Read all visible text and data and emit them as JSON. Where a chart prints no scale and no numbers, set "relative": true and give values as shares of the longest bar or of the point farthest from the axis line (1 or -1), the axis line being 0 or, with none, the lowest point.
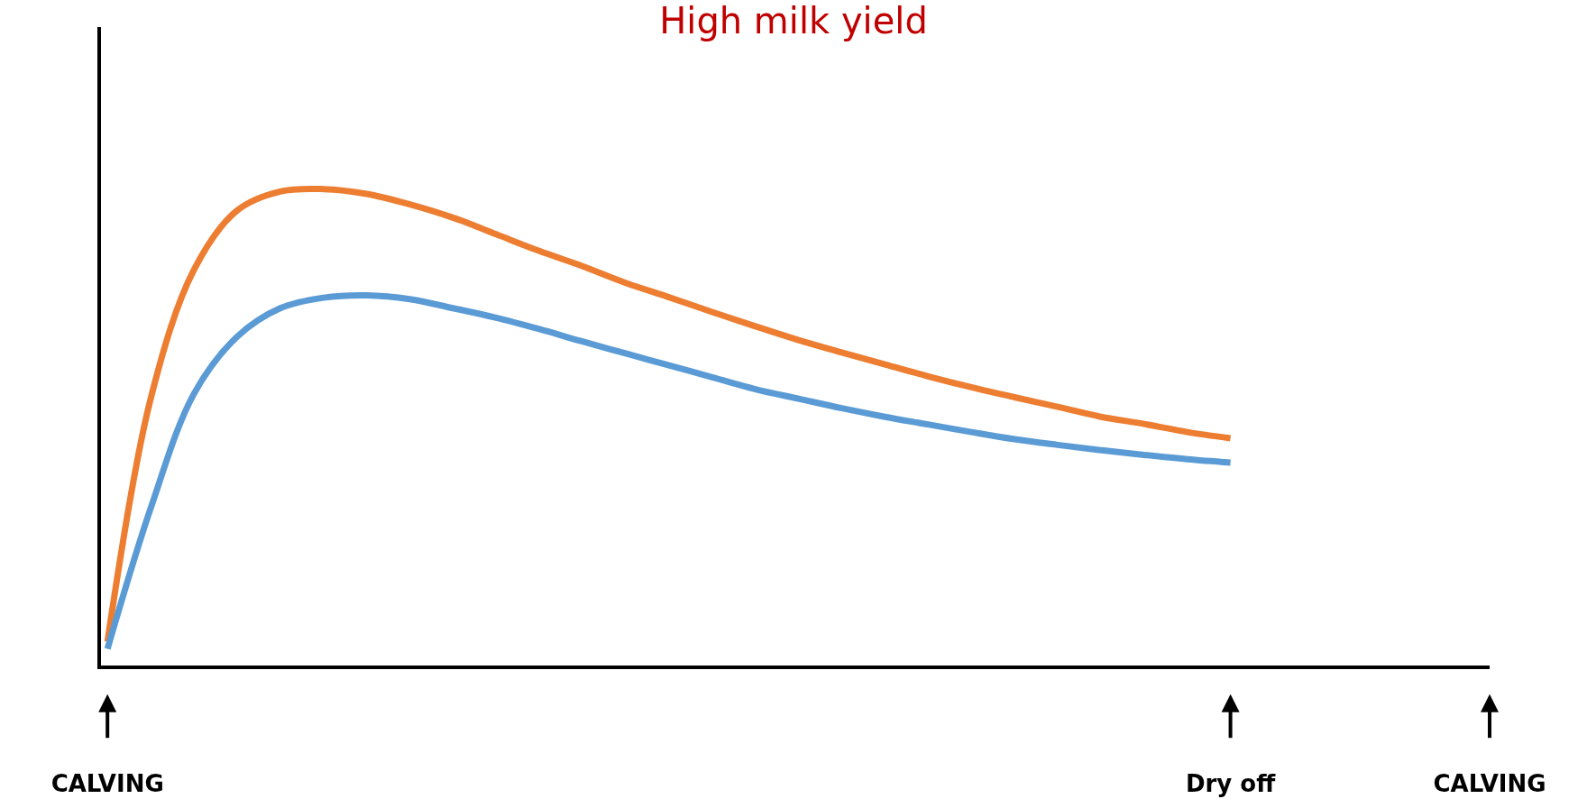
{
  "chart_data": {
    "type": "line",
    "title": "High milk yield",
    "relative": true,
    "categories": [
      "CALVING",
      null,
      null,
      null,
      null,
      null,
      null,
      null,
      null,
      null,
      null,
      null,
      null,
      null,
      null,
      null,
      null,
      null,
      null,
      null,
      null,
      null,
      null,
      null,
      null,
      null,
      "Dry off",
      null,
      null,
      null,
      null,
      null,
      "CALVING"
    ],
    "marker": "none",
    "line_style": "solid",
    "series": [
      {
        "color": "#ed7d31",
        "values": [
          0.05,
          0.56,
          0.83,
          0.955,
          0.995,
          1.0,
          0.99,
          0.968,
          0.94,
          0.905,
          0.87,
          0.838,
          0.803,
          0.773,
          0.742,
          0.712,
          0.683,
          0.657,
          0.632,
          0.607,
          0.584,
          0.563,
          0.543,
          0.522,
          0.507,
          0.49,
          0.477,
          null,
          null,
          null,
          null,
          null,
          null
        ]
      },
      {
        "color": "#5b9bd5",
        "values": [
          0.035,
          0.33,
          0.57,
          0.69,
          0.75,
          0.772,
          0.777,
          0.769,
          0.75,
          0.73,
          0.706,
          0.68,
          0.655,
          0.63,
          0.605,
          0.58,
          0.56,
          0.54,
          0.522,
          0.506,
          0.49,
          0.475,
          0.463,
          0.452,
          0.442,
          0.433,
          0.426,
          null,
          null,
          null,
          null,
          null,
          null
        ]
      }
    ]
  }
}
